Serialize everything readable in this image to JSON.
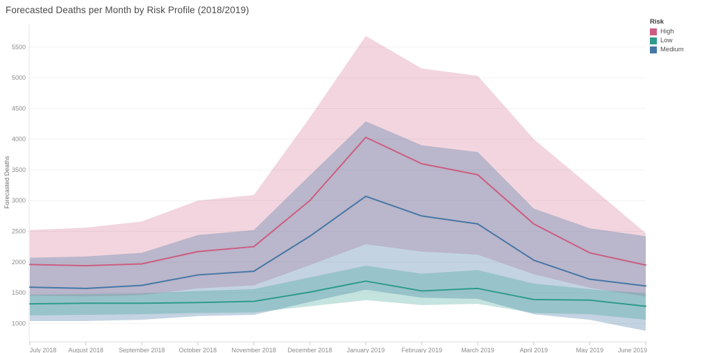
{
  "title": "Forecasted Deaths per Month by Risk Profile (2018/2019)",
  "y_axis": {
    "label": "Forecasted Deaths"
  },
  "legend": {
    "title": "Risk",
    "items": [
      {
        "label": "High",
        "color": "#cc5c80"
      },
      {
        "label": "Low",
        "color": "#2e9b8c"
      },
      {
        "label": "Medium",
        "color": "#4577a5"
      }
    ]
  },
  "chart_data": {
    "type": "area",
    "title": "Forecasted Deaths per Month by Risk Profile (2018/2019)",
    "xlabel": "",
    "ylabel": "Forecasted Deaths",
    "x": [
      "July 2018",
      "August 2018",
      "September 2018",
      "October 2018",
      "November 2018",
      "December 2018",
      "January 2019",
      "February 2019",
      "March 2019",
      "April 2019",
      "May 2019",
      "June 2019"
    ],
    "y_ticks": [
      1000,
      1500,
      2000,
      2500,
      3000,
      3500,
      4000,
      4500,
      5000,
      5500
    ],
    "ylim": [
      700,
      5870
    ],
    "grid": true,
    "legend_position": "top-right",
    "series": [
      {
        "name": "High",
        "color": "#cc5c80",
        "band_opacity": 0.26,
        "values": [
          1960,
          1940,
          1970,
          2170,
          2250,
          3000,
          4030,
          3600,
          3420,
          2620,
          2150,
          1950
        ],
        "upper": [
          2520,
          2560,
          2660,
          3000,
          3090,
          4350,
          5680,
          5150,
          5030,
          4000,
          3240,
          2470
        ],
        "lower": [
          1450,
          1440,
          1460,
          1570,
          1620,
          1950,
          2290,
          2170,
          2120,
          1800,
          1580,
          1440
        ]
      },
      {
        "name": "Medium",
        "color": "#4577a5",
        "band_opacity": 0.32,
        "values": [
          1590,
          1570,
          1620,
          1790,
          1850,
          2420,
          3070,
          2750,
          2620,
          2030,
          1720,
          1610
        ],
        "upper": [
          2070,
          2090,
          2150,
          2440,
          2520,
          3410,
          4290,
          3900,
          3790,
          2870,
          2550,
          2420
        ],
        "lower": [
          1040,
          1040,
          1060,
          1120,
          1140,
          1350,
          1550,
          1420,
          1400,
          1150,
          1060,
          880
        ]
      },
      {
        "name": "Low",
        "color": "#2e9b8c",
        "band_opacity": 0.28,
        "values": [
          1320,
          1330,
          1330,
          1340,
          1360,
          1510,
          1690,
          1530,
          1570,
          1390,
          1380,
          1280
        ],
        "upper": [
          1470,
          1480,
          1490,
          1530,
          1560,
          1750,
          1940,
          1810,
          1870,
          1650,
          1560,
          1490
        ],
        "lower": [
          1130,
          1140,
          1150,
          1170,
          1180,
          1280,
          1380,
          1300,
          1320,
          1170,
          1150,
          1060
        ]
      }
    ]
  }
}
